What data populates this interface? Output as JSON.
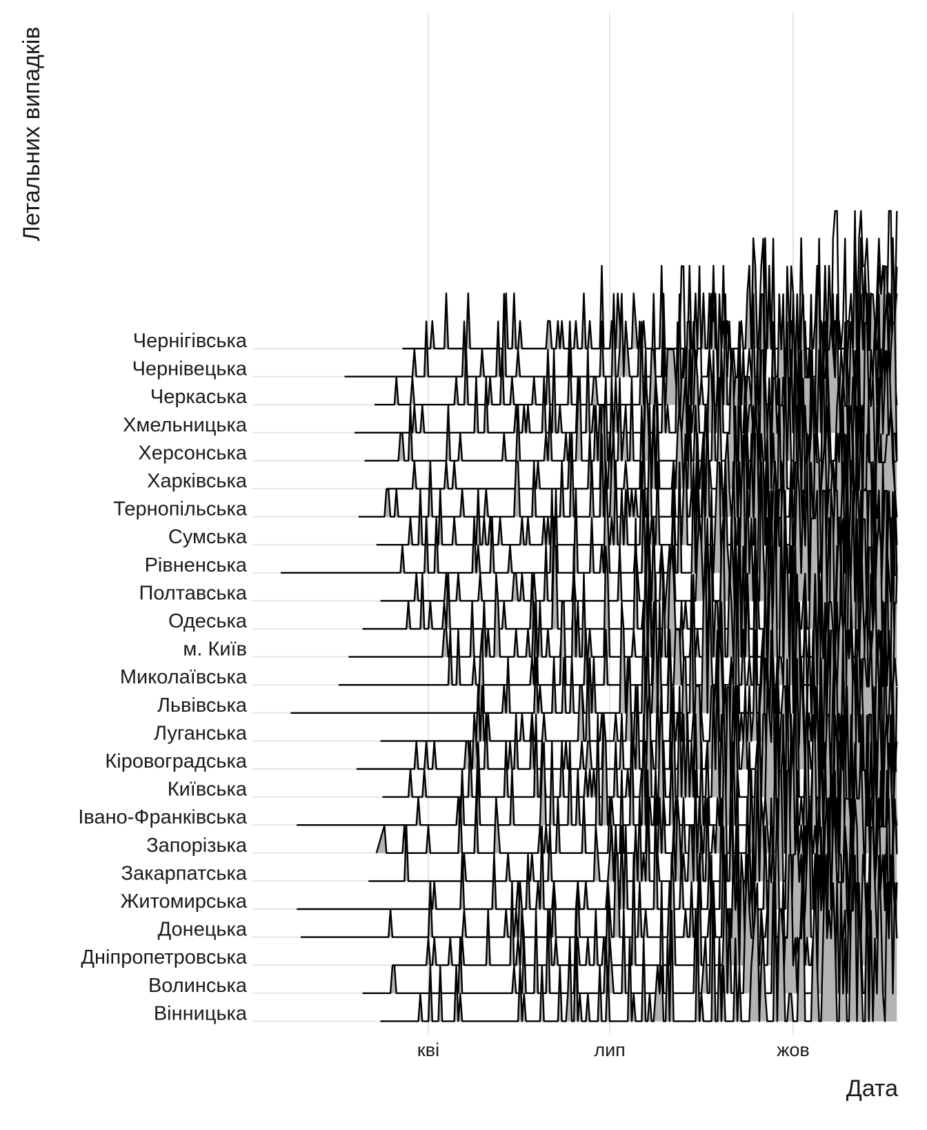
{
  "chart_data": {
    "type": "ridgeline",
    "xlabel": "Дата",
    "ylabel": "Летальних випадків",
    "x_ticks": [
      {
        "label": "кві",
        "date": "2020-04-01"
      },
      {
        "label": "лип",
        "date": "2020-07-01"
      },
      {
        "label": "жов",
        "date": "2020-10-01"
      }
    ],
    "x_range": [
      "2020-01-01",
      "2020-11-22"
    ],
    "grid": true,
    "fill_color": "#b3b3b3",
    "line_color": "#000000",
    "regions": [
      {
        "name": "Чернігівська",
        "first_date": "2020-03-19",
        "fill_end": "2020-11-22",
        "peak": 4
      },
      {
        "name": "Чернівецька",
        "first_date": "2020-02-19",
        "fill_end": "2020-07-25",
        "peak": 6
      },
      {
        "name": "Черкаська",
        "first_date": "2020-03-05",
        "fill_end": "2020-11-22",
        "peak": 5
      },
      {
        "name": "Хмельницька",
        "first_date": "2020-02-24",
        "fill_end": "2020-11-22",
        "peak": 5
      },
      {
        "name": "Херсонська",
        "first_date": "2020-02-29",
        "fill_end": "2020-11-22",
        "peak": 5
      },
      {
        "name": "Харківська",
        "first_date": "2020-03-11",
        "fill_end": "2020-11-22",
        "peak": 6
      },
      {
        "name": "Тернопільська",
        "first_date": "2020-02-26",
        "fill_end": "2020-11-22",
        "peak": 6
      },
      {
        "name": "Сумська",
        "first_date": "2020-03-06",
        "fill_end": "2020-11-22",
        "peak": 5
      },
      {
        "name": "Рівненська",
        "first_date": "2020-01-18",
        "fill_end": "2020-11-22",
        "peak": 6
      },
      {
        "name": "Полтавська",
        "first_date": "2020-03-08",
        "fill_end": "2020-11-22",
        "peak": 6
      },
      {
        "name": "Одеська",
        "first_date": "2020-02-28",
        "fill_end": "2020-11-22",
        "peak": 6
      },
      {
        "name": "м. Київ",
        "first_date": "2020-02-21",
        "fill_end": "2020-11-22",
        "peak": 7
      },
      {
        "name": "Миколаївська",
        "first_date": "2020-02-16",
        "fill_end": "2020-11-22",
        "peak": 6
      },
      {
        "name": "Львівська",
        "first_date": "2020-01-23",
        "fill_end": "2020-09-10",
        "peak": 8
      },
      {
        "name": "Луганська",
        "first_date": "2020-03-08",
        "fill_end": "2020-11-22",
        "peak": 5
      },
      {
        "name": "Кіровоградська",
        "first_date": "2020-02-25",
        "fill_end": "2020-11-22",
        "peak": 5
      },
      {
        "name": "Київська",
        "first_date": "2020-03-09",
        "fill_end": "2020-11-22",
        "peak": 6
      },
      {
        "name": "Івано-Франківська",
        "first_date": "2020-01-26",
        "fill_end": "2020-11-22",
        "peak": 7
      },
      {
        "name": "Запорізька",
        "first_date": "2020-03-06",
        "fill_end": "2020-11-22",
        "peak": 5
      },
      {
        "name": "Закарпатська",
        "first_date": "2020-03-02",
        "fill_end": "2020-09-30",
        "peak": 6
      },
      {
        "name": "Житомирська",
        "first_date": "2020-01-26",
        "fill_end": "2020-11-22",
        "peak": 6
      },
      {
        "name": "Донецька",
        "first_date": "2020-01-28",
        "fill_end": "2020-11-22",
        "peak": 5
      },
      {
        "name": "Дніпропетровська",
        "first_date": "2020-03-14",
        "fill_end": "2020-11-22",
        "peak": 6
      },
      {
        "name": "Волинська",
        "first_date": "2020-02-28",
        "fill_end": "2020-11-22",
        "peak": 6
      },
      {
        "name": "Вінницька",
        "first_date": "2020-03-08",
        "fill_end": "2020-11-22",
        "peak": 6
      }
    ]
  }
}
